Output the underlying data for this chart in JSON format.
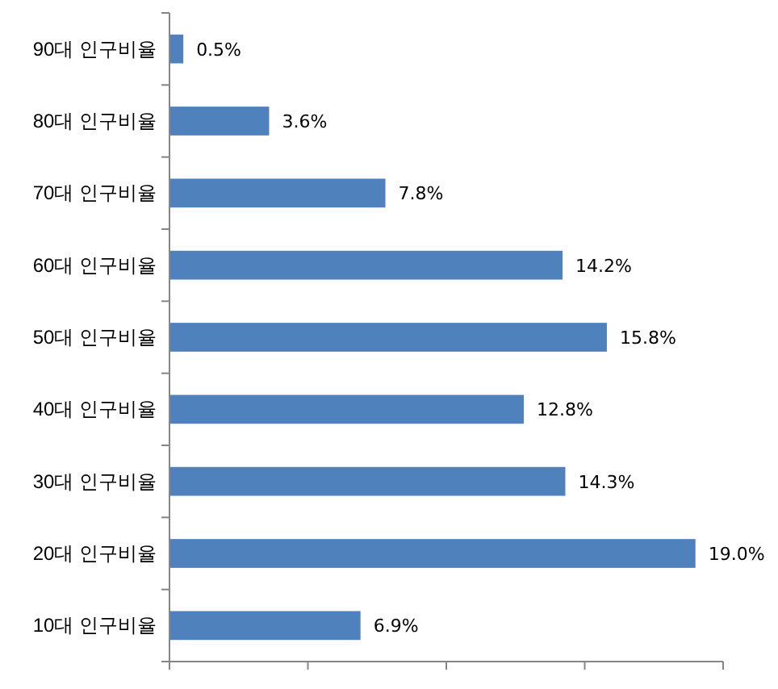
{
  "chart_data": {
    "type": "bar",
    "orientation": "horizontal",
    "categories": [
      "90대 인구비율",
      "80대 인구비율",
      "70대 인구비율",
      "60대 인구비율",
      "50대 인구비율",
      "40대 인구비율",
      "30대 인구비율",
      "20대 인구비율",
      "10대 인구비율"
    ],
    "values": [
      0.5,
      3.6,
      7.8,
      14.2,
      15.8,
      12.8,
      14.3,
      19.0,
      6.9
    ],
    "value_labels": [
      "0.5%",
      "3.6%",
      "7.8%",
      "14.2%",
      "15.8%",
      "12.8%",
      "14.3%",
      "19.0%",
      "6.9%"
    ],
    "color": "#4f81bd",
    "xlim": [
      0,
      20
    ],
    "xticks": [
      {
        "value": 0,
        "label": null
      },
      {
        "value": 5,
        "label": null
      },
      {
        "value": 10,
        "label": null
      },
      {
        "value": 15,
        "label": null
      },
      {
        "value": 20,
        "label": null
      }
    ],
    "tick_labels": "y"
  }
}
